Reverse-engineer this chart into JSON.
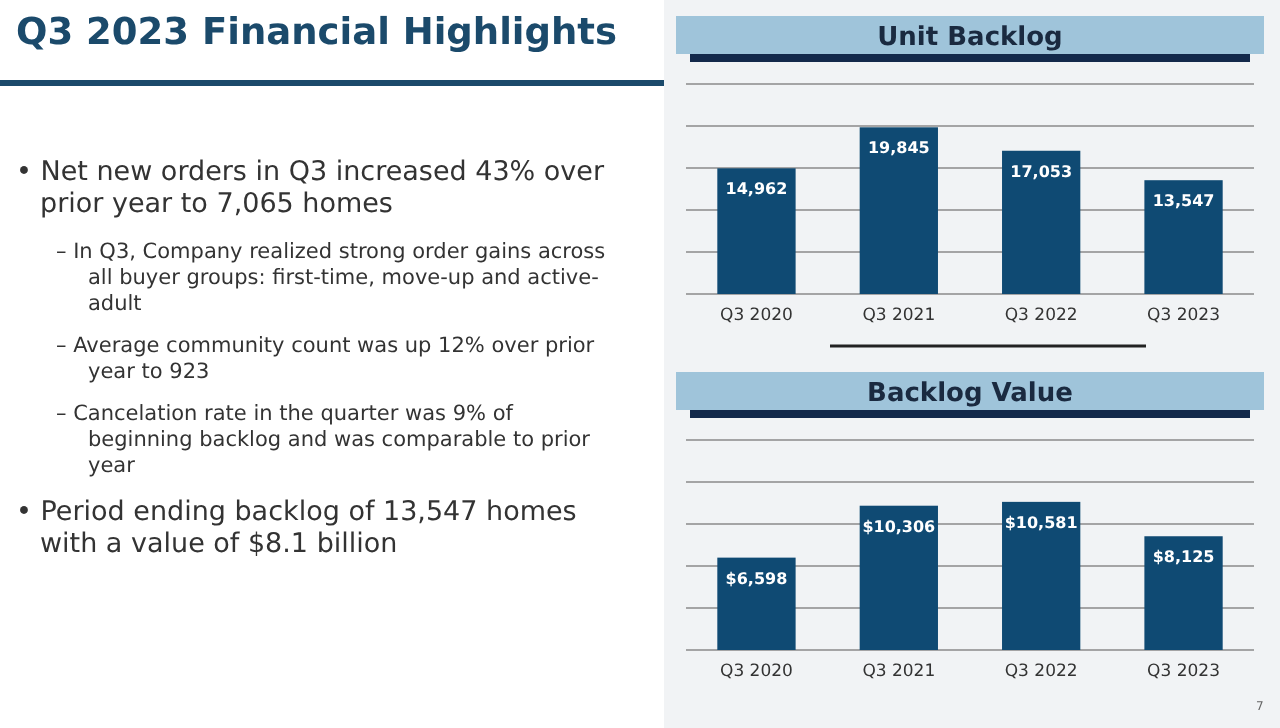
{
  "chart_data": [
    {
      "type": "other",
      "title": "Q3 2023 Financial Highlights",
      "annotations": [
        "• Net new orders in Q3 increased 43% over prior year to 7,065 homes",
        "– In Q3, Company realized strong order gains across all buyer groups: first-time, move-up and active-adult",
        "– Average community count was up 12% over prior year to 923",
        "– Cancelation rate in the quarter was 9% of beginning backlog and was comparable to prior year",
        "• Period ending backlog of 13,547 homes with a value of $8.1 billion",
        "7"
      ]
    },
    {
      "type": "bar",
      "title": "Unit Backlog",
      "categories": [
        "Q3 2020",
        "Q3 2021",
        "Q3 2022",
        "Q3 2023"
      ],
      "values": [
        14962,
        19845,
        17053,
        13547
      ],
      "color": "#0f4a73",
      "ylim": [
        0,
        25000
      ],
      "yticks": [
        {
          "value": 0,
          "label": null
        },
        {
          "value": 5000,
          "label": null
        },
        {
          "value": 10000,
          "label": null
        },
        {
          "value": 15000,
          "label": null
        },
        {
          "value": 20000,
          "label": null
        },
        {
          "value": 25000,
          "label": null
        }
      ],
      "grid": true,
      "tick_labels": "x",
      "data_labels": true,
      "value_labels": [
        "14,962",
        "19,845",
        "17,053",
        "13,547"
      ]
    },
    {
      "type": "bar",
      "title": "Backlog Value",
      "categories": [
        "Q3 2020",
        "Q3 2021",
        "Q3 2022",
        "Q3 2023"
      ],
      "values": [
        6598,
        10306,
        10581,
        8125
      ],
      "color": "#0f4a73",
      "ylim": [
        0,
        15000
      ],
      "yticks": [
        {
          "value": 0,
          "label": null
        },
        {
          "value": 3000,
          "label": null
        },
        {
          "value": 6000,
          "label": null
        },
        {
          "value": 9000,
          "label": null
        },
        {
          "value": 12000,
          "label": null
        },
        {
          "value": 15000,
          "label": null
        }
      ],
      "grid": true,
      "tick_labels": "x",
      "data_labels": true,
      "value_labels": [
        "$6,598",
        "$10,306",
        "$10,581",
        "$8,125"
      ]
    }
  ]
}
